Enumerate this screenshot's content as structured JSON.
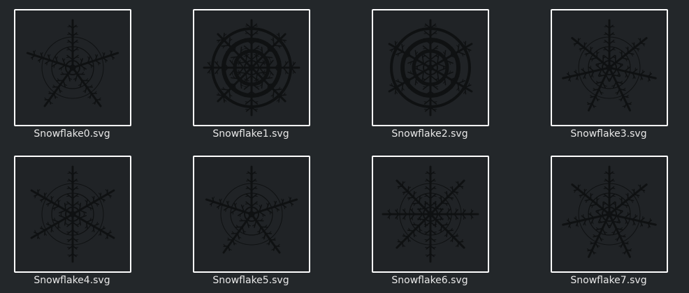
{
  "files": [
    {
      "name": "Snowflake0.svg",
      "icon": "snowflake-5-arm-icon",
      "arms": 5
    },
    {
      "name": "Snowflake1.svg",
      "icon": "snowflake-8-arm-icon",
      "arms": 8
    },
    {
      "name": "Snowflake2.svg",
      "icon": "snowflake-6-arm-dense-icon",
      "arms": 6
    },
    {
      "name": "Snowflake3.svg",
      "icon": "snowflake-7-arm-icon",
      "arms": 7
    },
    {
      "name": "Snowflake4.svg",
      "icon": "snowflake-6-arm-icon",
      "arms": 6
    },
    {
      "name": "Snowflake5.svg",
      "icon": "snowflake-5-arm-icon",
      "arms": 5
    },
    {
      "name": "Snowflake6.svg",
      "icon": "snowflake-8-arm-icon",
      "arms": 8
    },
    {
      "name": "Snowflake7.svg",
      "icon": "snowflake-7-arm-icon",
      "arms": 7
    }
  ],
  "colors": {
    "background": "#23272a",
    "thumb_border": "#ffffff",
    "flake": "#0f1112",
    "label": "#e8e8e8"
  }
}
